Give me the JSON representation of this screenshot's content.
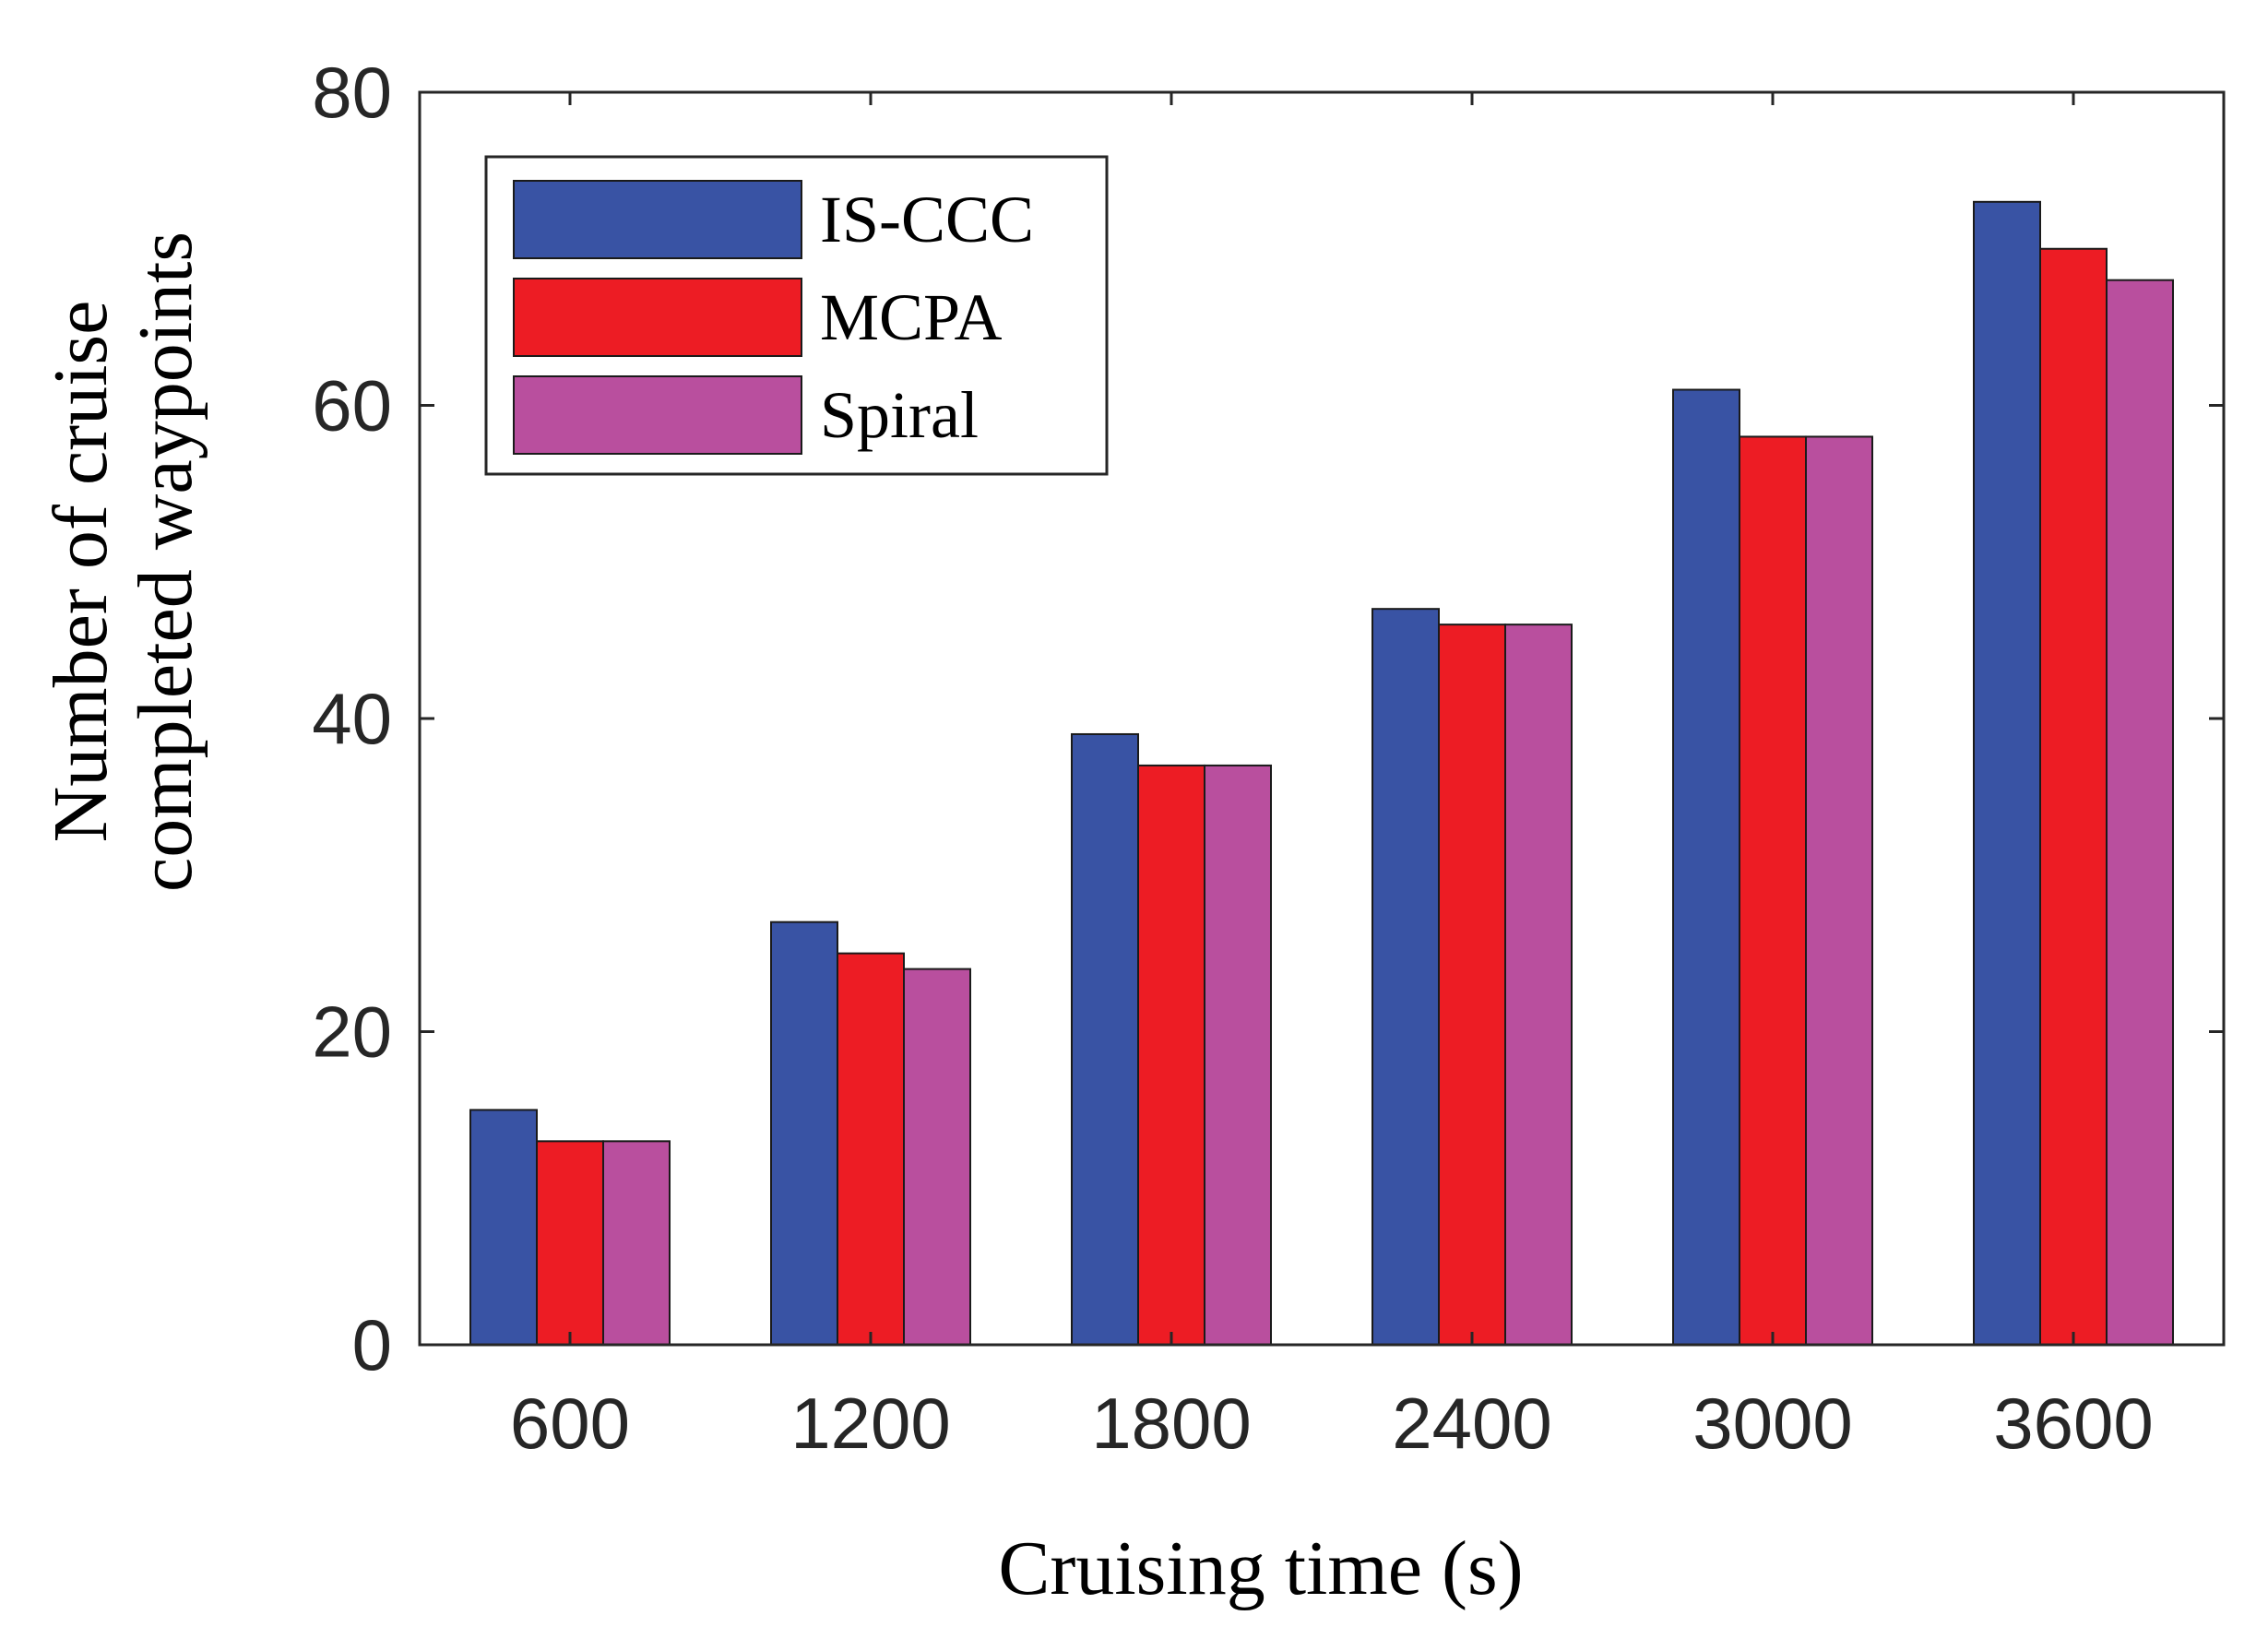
{
  "chart_data": {
    "type": "bar",
    "title": "",
    "xlabel": "Cruising time (s)",
    "ylabel_lines": [
      "Number of cruise",
      "completed waypoints"
    ],
    "categories": [
      "600",
      "1200",
      "1800",
      "2400",
      "3000",
      "3600"
    ],
    "series": [
      {
        "name": "IS-CCC",
        "color": "#3953A4",
        "values": [
          15,
          27,
          39,
          47,
          61,
          73
        ]
      },
      {
        "name": "MCPA",
        "color": "#ED1C24",
        "values": [
          13,
          25,
          37,
          46,
          58,
          70
        ]
      },
      {
        "name": "Spiral",
        "color": "#B94F9E",
        "values": [
          13,
          24,
          37,
          46,
          58,
          68
        ]
      }
    ],
    "ylim": [
      0,
      80
    ],
    "yticks": [
      0,
      20,
      40,
      60,
      80
    ],
    "grid": false,
    "legend_position": "top-left"
  }
}
